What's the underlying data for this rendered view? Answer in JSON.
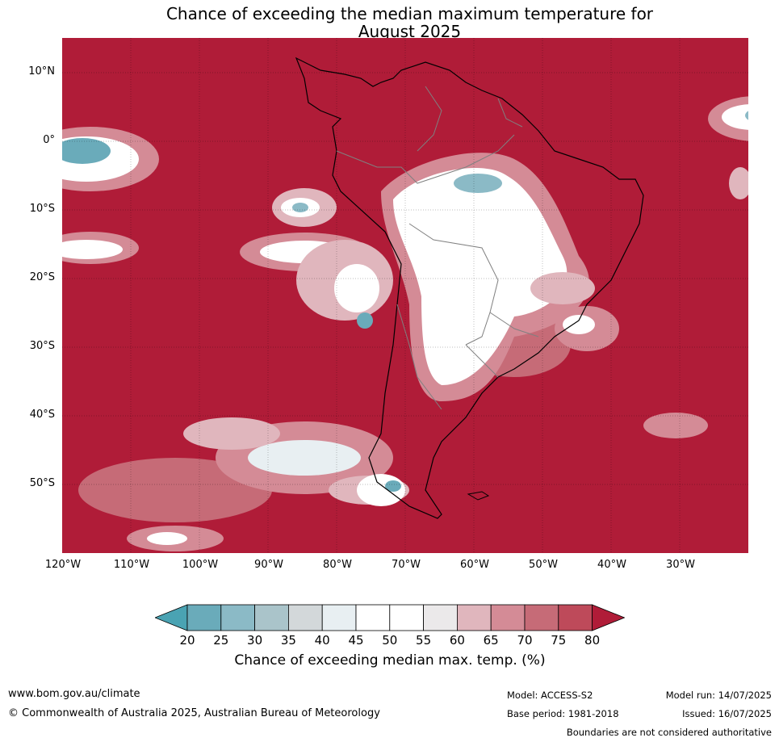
{
  "title": {
    "line1": "Chance of exceeding the median maximum temperature for",
    "line2": "August 2025"
  },
  "map": {
    "latitude_labels": [
      "10°N",
      "0°",
      "10°S",
      "20°S",
      "30°S",
      "40°S",
      "50°S"
    ],
    "longitude_labels": [
      "120°W",
      "110°W",
      "100°W",
      "90°W",
      "80°W",
      "70°W",
      "60°W",
      "50°W",
      "40°W",
      "30°W"
    ],
    "dominant_category": "80",
    "background_color": "#b01c38"
  },
  "colorbar": {
    "ticks": [
      "20",
      "25",
      "30",
      "35",
      "40",
      "45",
      "50",
      "55",
      "60",
      "65",
      "70",
      "75",
      "80"
    ],
    "colors": [
      "#4aa3b3",
      "#6aabba",
      "#8bbac6",
      "#aac4ca",
      "#d3d8da",
      "#e8eff2",
      "#ffffff",
      "#ffffff",
      "#ebe9ea",
      "#e0b6bd",
      "#d48b96",
      "#c66b77",
      "#be4a5a",
      "#b01c38"
    ],
    "label": "Chance of exceeding median max. temp. (%)"
  },
  "footer": {
    "website": "www.bom.gov.au/climate",
    "copyright": "© Commonwealth of Australia 2025, Australian Bureau of Meteorology",
    "model": "Model: ACCESS-S2",
    "base_period": "Base period: 1981-2018",
    "model_run": "Model run: 14/07/2025",
    "issued": "Issued: 16/07/2025",
    "disclaimer": "Boundaries are not considered authoritative"
  }
}
